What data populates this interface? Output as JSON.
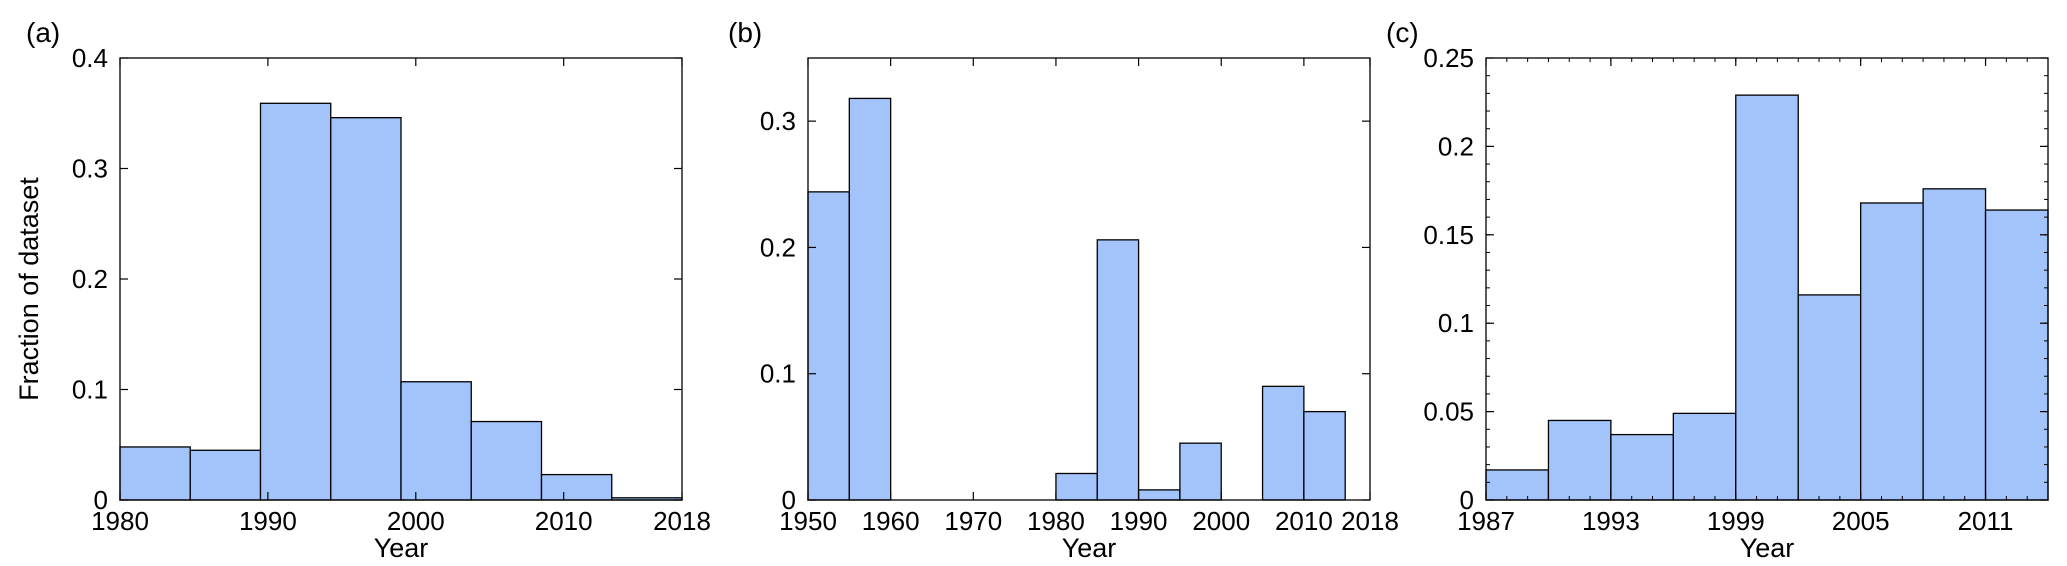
{
  "figure": {
    "bar_color": "#a3c3fb",
    "edge_color": "#000000"
  },
  "chart_data": [
    {
      "type": "bar",
      "panel_label": "(a)",
      "xlabel": "Year",
      "ylabel": "Fraction of dataset",
      "xlim": [
        1980,
        2018
      ],
      "ylim": [
        0,
        0.4
      ],
      "bin_edges": [
        1980,
        1984.75,
        1989.5,
        1994.25,
        1999,
        2003.75,
        2008.5,
        2013.25,
        2018
      ],
      "values": [
        0.048,
        0.045,
        0.359,
        0.346,
        0.107,
        0.071,
        0.023,
        0.002
      ],
      "xticks": [
        1980,
        1990,
        2000,
        2010,
        2018
      ],
      "xtick_labels": [
        "1980",
        "1990",
        "2000",
        "2010",
        "2018"
      ],
      "yticks": [
        0,
        0.1,
        0.2,
        0.3,
        0.4
      ],
      "ytick_labels": [
        "0",
        "0.1",
        "0.2",
        "0.3",
        "0.4"
      ],
      "grid": false
    },
    {
      "type": "bar",
      "panel_label": "(b)",
      "xlabel": "Year",
      "ylabel": "",
      "xlim": [
        1950,
        2018
      ],
      "ylim": [
        0,
        0.35
      ],
      "bin_edges": [
        1950,
        1955.0,
        1960.0,
        1965.0,
        1970.0,
        1975.0,
        1980.0,
        1985.0,
        1990.0,
        1995.0,
        2000.0,
        2005.0,
        2010.0,
        2015.0
      ],
      "values": [
        0.244,
        0.318,
        0.0,
        0.0,
        0.0,
        0.0,
        0.021,
        0.206,
        0.008,
        0.045,
        0.0,
        0.09,
        0.07
      ],
      "xticks": [
        1950,
        1960,
        1970,
        1980,
        1990,
        2000,
        2010,
        2018
      ],
      "xtick_labels": [
        "1950",
        "1960",
        "1970",
        "1980",
        "1990",
        "2000",
        "2010",
        "2018"
      ],
      "yticks": [
        0,
        0.1,
        0.2,
        0.3
      ],
      "ytick_labels": [
        "0",
        "0.1",
        "0.2",
        "0.3"
      ],
      "grid": false
    },
    {
      "type": "bar",
      "panel_label": "(c)",
      "xlabel": "Year",
      "ylabel": "",
      "xlim": [
        1987,
        2014
      ],
      "ylim": [
        0,
        0.25
      ],
      "bin_edges": [
        1987,
        1990.0,
        1993.0,
        1996.0,
        1999.0,
        2002.0,
        2005.0,
        2008.0,
        2011.0,
        2014.0
      ],
      "values": [
        0.017,
        0.045,
        0.037,
        0.049,
        0.229,
        0.116,
        0.168,
        0.176,
        0.164
      ],
      "xticks": [
        1987,
        1993,
        1999,
        2005,
        2011
      ],
      "xtick_labels": [
        "1987",
        "1993",
        "1999",
        "2005",
        "2011"
      ],
      "yticks": [
        0,
        0.05,
        0.1,
        0.15,
        0.2,
        0.25
      ],
      "ytick_labels": [
        "0",
        "0.05",
        "0.1",
        "0.15",
        "0.2",
        "0.25"
      ],
      "grid": false
    }
  ]
}
